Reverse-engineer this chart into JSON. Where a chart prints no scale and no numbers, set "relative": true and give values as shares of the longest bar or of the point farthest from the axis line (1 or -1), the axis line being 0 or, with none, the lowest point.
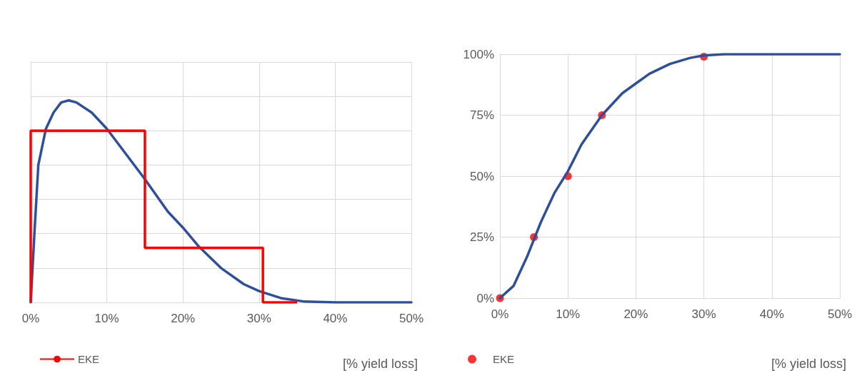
{
  "chart_data": [
    {
      "type": "line",
      "relative": true,
      "xlabel": "[% yield loss]",
      "xlim": [
        0,
        50
      ],
      "xticks": [
        {
          "value": 0,
          "label": "0%"
        },
        {
          "value": 10,
          "label": "10%"
        },
        {
          "value": 20,
          "label": "20%"
        },
        {
          "value": 30,
          "label": "30%"
        },
        {
          "value": 40,
          "label": "40%"
        },
        {
          "value": 50,
          "label": "50%"
        }
      ],
      "grid": true,
      "legend": "bottom left",
      "tick_labels": "x",
      "marker": "none",
      "series": [
        {
          "color": "#2e4f9b",
          "x": [
            0,
            0.5,
            1,
            2,
            3,
            4,
            5,
            6,
            8,
            10,
            12,
            15,
            18,
            20,
            22,
            25,
            28,
            30,
            33,
            36,
            40,
            50
          ],
          "values": [
            0,
            0.35,
            0.68,
            0.86,
            0.94,
            0.99,
            1,
            0.99,
            0.94,
            0.86,
            0.76,
            0.61,
            0.45,
            0.37,
            0.28,
            0.17,
            0.09,
            0.056,
            0.02,
            0.004,
            0,
            0
          ]
        },
        {
          "type": "step",
          "name": "EKE",
          "color": "#ff0000",
          "x": [
            0,
            0,
            15,
            30.5,
            35
          ],
          "values": [
            0,
            0.85,
            0.27,
            0,
            0
          ]
        }
      ]
    },
    {
      "type": "line",
      "xlabel": "[% yield loss]",
      "xlim": [
        0,
        50
      ],
      "xticks": [
        {
          "value": 0,
          "label": "0%"
        },
        {
          "value": 10,
          "label": "10%"
        },
        {
          "value": 20,
          "label": "20%"
        },
        {
          "value": 30,
          "label": "30%"
        },
        {
          "value": 40,
          "label": "40%"
        },
        {
          "value": 50,
          "label": "50%"
        }
      ],
      "ylim": [
        0,
        100
      ],
      "yticks": [
        {
          "value": 0,
          "label": "0%"
        },
        {
          "value": 25,
          "label": "25%"
        },
        {
          "value": 50,
          "label": "50%"
        },
        {
          "value": 75,
          "label": "75%"
        },
        {
          "value": 100,
          "label": "100%"
        }
      ],
      "grid": true,
      "legend": "bottom left",
      "series": [
        {
          "color": "#2e4f9b",
          "marker": "none",
          "x": [
            0,
            2,
            4,
            5,
            6,
            8,
            10,
            12,
            15,
            18,
            20,
            22,
            25,
            28,
            30,
            33,
            40,
            50
          ],
          "values": [
            0,
            5,
            17,
            24,
            31,
            43,
            52,
            63,
            75,
            84,
            88,
            92,
            96,
            98.5,
            99.5,
            100,
            100,
            100
          ]
        },
        {
          "type": "scatter",
          "name": "EKE",
          "color": "#ff0000",
          "marker": "circle",
          "x": [
            0,
            5,
            10,
            15,
            30
          ],
          "values": [
            0,
            25,
            50,
            75,
            99
          ]
        }
      ]
    }
  ]
}
